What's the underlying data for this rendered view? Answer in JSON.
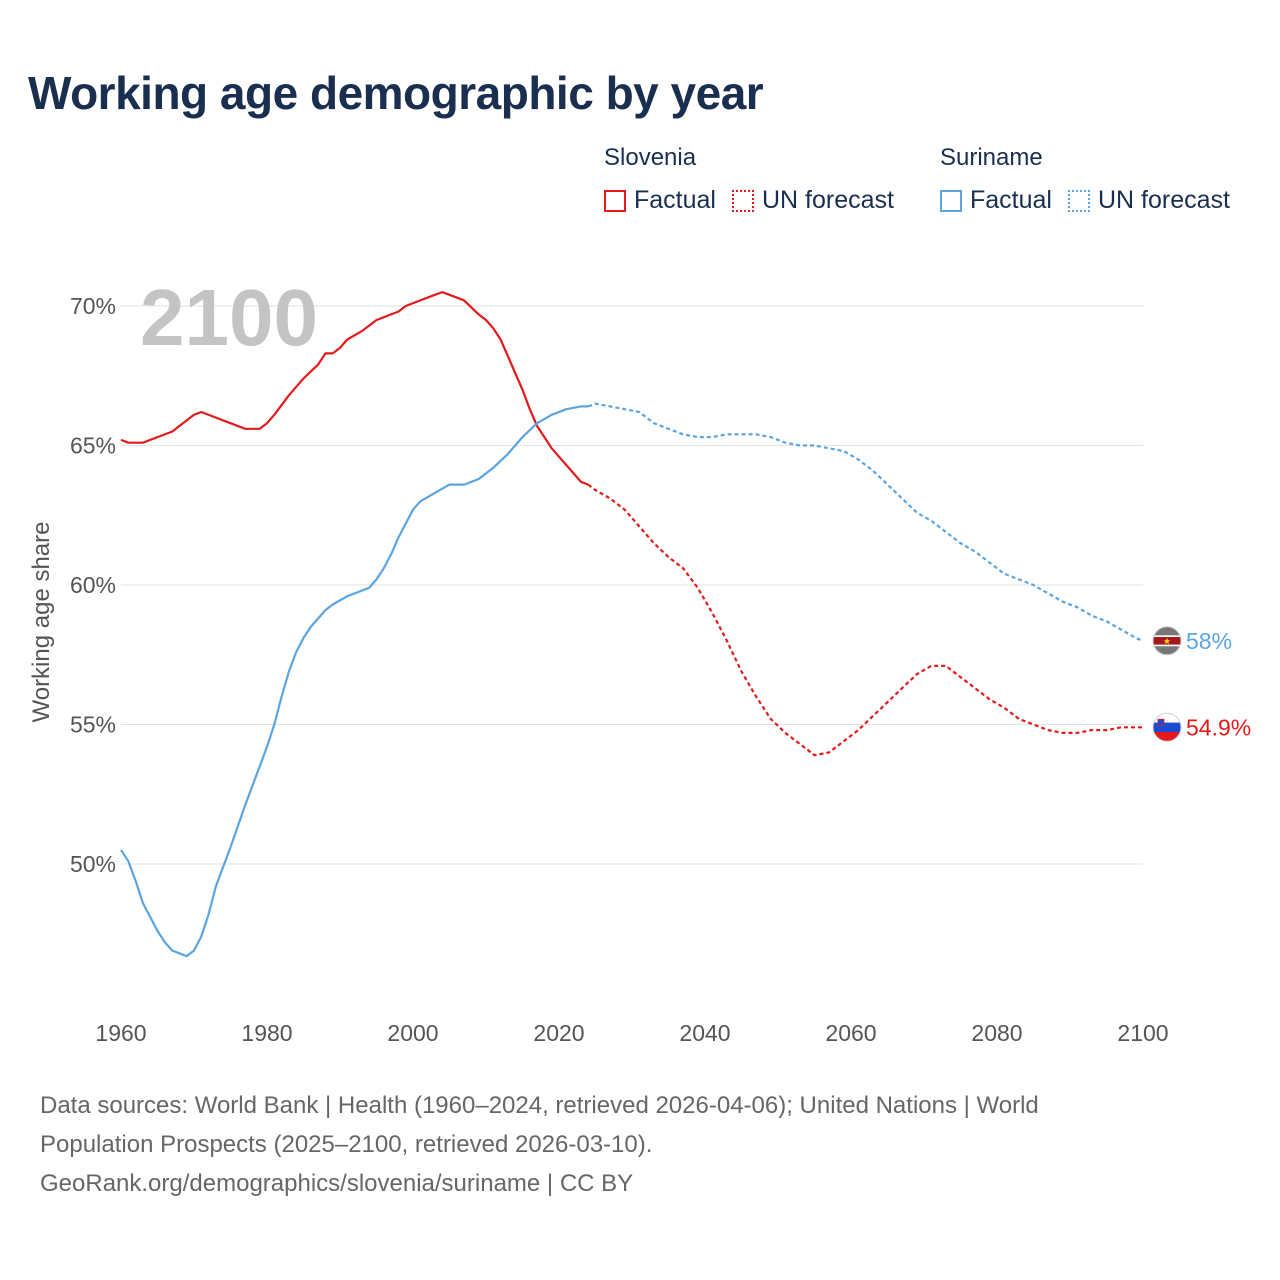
{
  "title": "Working age demographic by year",
  "year_watermark": "2100",
  "legend": [
    {
      "group": "Slovenia",
      "color": "#e31a1c",
      "items": [
        {
          "label": "Factual",
          "style": "solid"
        },
        {
          "label": "UN forecast",
          "style": "dotted"
        }
      ]
    },
    {
      "group": "Suriname",
      "color": "#5ba4e0",
      "items": [
        {
          "label": "Factual",
          "style": "solid"
        },
        {
          "label": "UN forecast",
          "style": "dotted"
        }
      ]
    }
  ],
  "footer": {
    "line1": "Data sources: World Bank | Health (1960–2024, retrieved 2026-04-06); United Nations | World",
    "line2": "Population Prospects (2025–2100, retrieved 2026-03-10).",
    "line3": "GeoRank.org/demographics/slovenia/suriname | CC BY"
  },
  "chart_data": {
    "type": "line",
    "title": "Working age demographic by year",
    "xlabel": "",
    "ylabel": "Working age share",
    "xlim": [
      1960,
      2100
    ],
    "ylim": [
      45.5,
      71.5
    ],
    "x_ticks": [
      1960,
      1980,
      2000,
      2020,
      2040,
      2060,
      2080,
      2100
    ],
    "y_ticks": [
      {
        "value": 50,
        "label": "50%"
      },
      {
        "value": 55,
        "label": "55%"
      },
      {
        "value": 60,
        "label": "60%"
      },
      {
        "value": 65,
        "label": "65%"
      },
      {
        "value": 70,
        "label": "70%"
      }
    ],
    "forecast_start_year": 2024,
    "series": [
      {
        "name": "Slovenia",
        "color": "#e31a1c",
        "end_label": "54.9%",
        "flag": "slovenia-flag",
        "points": [
          [
            1960,
            65.2
          ],
          [
            1961,
            65.1
          ],
          [
            1963,
            65.1
          ],
          [
            1965,
            65.3
          ],
          [
            1967,
            65.5
          ],
          [
            1969,
            65.9
          ],
          [
            1970,
            66.1
          ],
          [
            1971,
            66.2
          ],
          [
            1973,
            66.0
          ],
          [
            1975,
            65.8
          ],
          [
            1977,
            65.6
          ],
          [
            1979,
            65.6
          ],
          [
            1980,
            65.8
          ],
          [
            1981,
            66.1
          ],
          [
            1983,
            66.8
          ],
          [
            1985,
            67.4
          ],
          [
            1987,
            67.9
          ],
          [
            1988,
            68.3
          ],
          [
            1989,
            68.3
          ],
          [
            1990,
            68.5
          ],
          [
            1991,
            68.8
          ],
          [
            1993,
            69.1
          ],
          [
            1995,
            69.5
          ],
          [
            1997,
            69.7
          ],
          [
            1998,
            69.8
          ],
          [
            1999,
            70.0
          ],
          [
            2001,
            70.2
          ],
          [
            2003,
            70.4
          ],
          [
            2004,
            70.5
          ],
          [
            2005,
            70.4
          ],
          [
            2007,
            70.2
          ],
          [
            2009,
            69.7
          ],
          [
            2010,
            69.5
          ],
          [
            2011,
            69.2
          ],
          [
            2012,
            68.8
          ],
          [
            2013,
            68.2
          ],
          [
            2014,
            67.6
          ],
          [
            2015,
            67.0
          ],
          [
            2016,
            66.3
          ],
          [
            2017,
            65.7
          ],
          [
            2018,
            65.3
          ],
          [
            2019,
            64.9
          ],
          [
            2020,
            64.6
          ],
          [
            2021,
            64.3
          ],
          [
            2022,
            64.0
          ],
          [
            2023,
            63.7
          ],
          [
            2024,
            63.6
          ],
          [
            2025,
            63.4
          ],
          [
            2027,
            63.1
          ],
          [
            2029,
            62.7
          ],
          [
            2031,
            62.1
          ],
          [
            2033,
            61.5
          ],
          [
            2035,
            61.0
          ],
          [
            2037,
            60.6
          ],
          [
            2039,
            59.9
          ],
          [
            2041,
            59.0
          ],
          [
            2043,
            58.0
          ],
          [
            2045,
            56.9
          ],
          [
            2047,
            56.0
          ],
          [
            2049,
            55.2
          ],
          [
            2051,
            54.7
          ],
          [
            2053,
            54.3
          ],
          [
            2055,
            53.9
          ],
          [
            2057,
            54.0
          ],
          [
            2059,
            54.4
          ],
          [
            2061,
            54.8
          ],
          [
            2063,
            55.3
          ],
          [
            2065,
            55.8
          ],
          [
            2067,
            56.3
          ],
          [
            2069,
            56.8
          ],
          [
            2071,
            57.1
          ],
          [
            2073,
            57.1
          ],
          [
            2075,
            56.7
          ],
          [
            2077,
            56.3
          ],
          [
            2079,
            55.9
          ],
          [
            2081,
            55.6
          ],
          [
            2083,
            55.2
          ],
          [
            2085,
            55.0
          ],
          [
            2087,
            54.8
          ],
          [
            2089,
            54.7
          ],
          [
            2091,
            54.7
          ],
          [
            2093,
            54.8
          ],
          [
            2095,
            54.8
          ],
          [
            2097,
            54.9
          ],
          [
            2099,
            54.9
          ],
          [
            2100,
            54.9
          ]
        ]
      },
      {
        "name": "Suriname",
        "color": "#5ba4e0",
        "end_label": "58%",
        "flag": "suriname-flag",
        "points": [
          [
            1960,
            50.5
          ],
          [
            1961,
            50.1
          ],
          [
            1962,
            49.4
          ],
          [
            1963,
            48.6
          ],
          [
            1964,
            48.1
          ],
          [
            1965,
            47.6
          ],
          [
            1966,
            47.2
          ],
          [
            1967,
            46.9
          ],
          [
            1968,
            46.8
          ],
          [
            1969,
            46.7
          ],
          [
            1970,
            46.9
          ],
          [
            1971,
            47.4
          ],
          [
            1972,
            48.2
          ],
          [
            1973,
            49.2
          ],
          [
            1975,
            50.6
          ],
          [
            1977,
            52.1
          ],
          [
            1979,
            53.5
          ],
          [
            1980,
            54.2
          ],
          [
            1981,
            55.0
          ],
          [
            1982,
            56.0
          ],
          [
            1983,
            56.9
          ],
          [
            1984,
            57.6
          ],
          [
            1985,
            58.1
          ],
          [
            1986,
            58.5
          ],
          [
            1987,
            58.8
          ],
          [
            1988,
            59.1
          ],
          [
            1989,
            59.3
          ],
          [
            1991,
            59.6
          ],
          [
            1993,
            59.8
          ],
          [
            1994,
            59.9
          ],
          [
            1995,
            60.2
          ],
          [
            1996,
            60.6
          ],
          [
            1997,
            61.1
          ],
          [
            1998,
            61.7
          ],
          [
            1999,
            62.2
          ],
          [
            2000,
            62.7
          ],
          [
            2001,
            63.0
          ],
          [
            2003,
            63.3
          ],
          [
            2005,
            63.6
          ],
          [
            2007,
            63.6
          ],
          [
            2009,
            63.8
          ],
          [
            2011,
            64.2
          ],
          [
            2013,
            64.7
          ],
          [
            2015,
            65.3
          ],
          [
            2017,
            65.8
          ],
          [
            2019,
            66.1
          ],
          [
            2021,
            66.3
          ],
          [
            2023,
            66.4
          ],
          [
            2024,
            66.4
          ],
          [
            2025,
            66.5
          ],
          [
            2027,
            66.4
          ],
          [
            2029,
            66.3
          ],
          [
            2031,
            66.2
          ],
          [
            2033,
            65.8
          ],
          [
            2035,
            65.6
          ],
          [
            2037,
            65.4
          ],
          [
            2039,
            65.3
          ],
          [
            2041,
            65.3
          ],
          [
            2043,
            65.4
          ],
          [
            2045,
            65.4
          ],
          [
            2047,
            65.4
          ],
          [
            2049,
            65.3
          ],
          [
            2051,
            65.1
          ],
          [
            2053,
            65.0
          ],
          [
            2055,
            65.0
          ],
          [
            2057,
            64.9
          ],
          [
            2059,
            64.8
          ],
          [
            2061,
            64.5
          ],
          [
            2063,
            64.1
          ],
          [
            2065,
            63.6
          ],
          [
            2067,
            63.1
          ],
          [
            2069,
            62.6
          ],
          [
            2071,
            62.3
          ],
          [
            2073,
            61.9
          ],
          [
            2075,
            61.5
          ],
          [
            2077,
            61.2
          ],
          [
            2079,
            60.8
          ],
          [
            2081,
            60.4
          ],
          [
            2083,
            60.2
          ],
          [
            2085,
            60.0
          ],
          [
            2087,
            59.7
          ],
          [
            2089,
            59.4
          ],
          [
            2091,
            59.2
          ],
          [
            2093,
            58.9
          ],
          [
            2095,
            58.7
          ],
          [
            2097,
            58.4
          ],
          [
            2099,
            58.1
          ],
          [
            2100,
            58.0
          ]
        ]
      }
    ]
  }
}
